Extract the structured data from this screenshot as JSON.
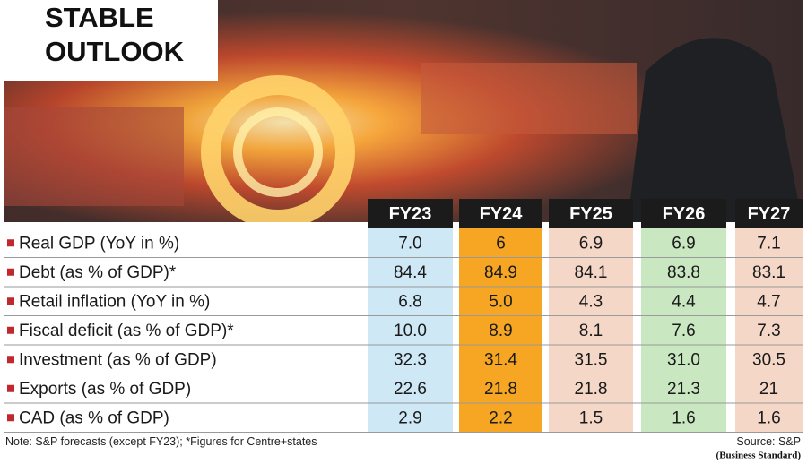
{
  "header": {
    "title_lines": [
      "STABLE",
      "OUTLOOK"
    ]
  },
  "table": {
    "columns": [
      "FY23",
      "FY24",
      "FY25",
      "FY26",
      "FY27"
    ],
    "rows": [
      {
        "label": "Real GDP (YoY in %)",
        "values": [
          "7.0",
          "6",
          "6.9",
          "6.9",
          "7.1"
        ]
      },
      {
        "label": "Debt (as % of GDP)*",
        "values": [
          "84.4",
          "84.9",
          "84.1",
          "83.8",
          "83.1"
        ]
      },
      {
        "label": "Retail inflation (YoY in %)",
        "values": [
          "6.8",
          "5.0",
          "4.3",
          "4.4",
          "4.7"
        ]
      },
      {
        "label": "Fiscal deficit (as % of GDP)*",
        "values": [
          "10.0",
          "8.9",
          "8.1",
          "7.6",
          "7.3"
        ]
      },
      {
        "label": "Investment (as % of GDP)",
        "values": [
          "32.3",
          "31.4",
          "31.5",
          "31.0",
          "30.5"
        ]
      },
      {
        "label": "Exports (as % of GDP)",
        "values": [
          "22.6",
          "21.8",
          "21.8",
          "21.3",
          "21"
        ]
      },
      {
        "label": "CAD (as % of GDP)",
        "values": [
          "2.9",
          "2.2",
          "1.5",
          "1.6",
          "1.6"
        ]
      }
    ]
  },
  "note": "Note: S&P forecasts (except FY23); *Figures for Centre+states",
  "source": "Source: S&P",
  "credit": "(Business Standard)"
}
